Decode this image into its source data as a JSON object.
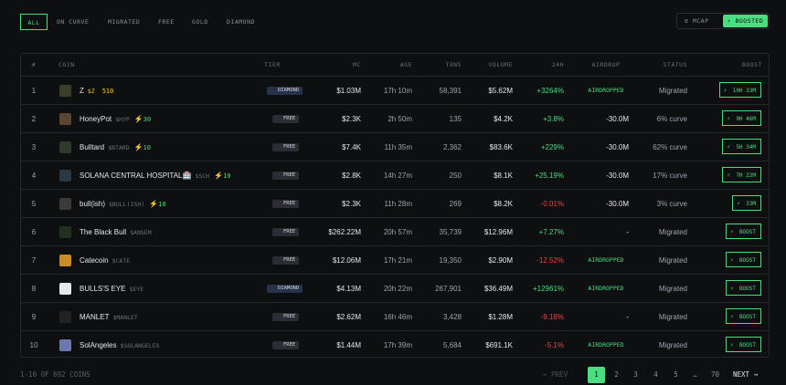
{
  "tabs": [
    "ALL",
    "ON CURVE",
    "MIGRATED",
    "FREE",
    "GOLD",
    "DIAMOND"
  ],
  "sort": [
    "MCAP",
    "BOOSTED"
  ],
  "table": {
    "headers": [
      "#",
      "COIN",
      "TIER",
      "MC",
      "AGE",
      "TXNS",
      "VOLUME",
      "24H",
      "AIRDROP",
      "STATUS",
      "BOOST"
    ],
    "rows": [
      {
        "rank": "1",
        "name": "Z",
        "ticker": "$Z",
        "points": "510",
        "tier": "DIAMOND",
        "mc": "$1.03M",
        "age": "17h 10m",
        "txns": "58,391",
        "volume": "$5.62M",
        "change": "+3264%",
        "airdrop": "AIRDROPPED",
        "status": "Migrated",
        "boost": "10H 33M"
      },
      {
        "rank": "2",
        "name": "HoneyPot",
        "ticker": "$HYP",
        "points": "30",
        "tier": "FREE",
        "mc": "$2.3K",
        "age": "2h 50m",
        "txns": "135",
        "volume": "$4.2K",
        "change": "+3.8%",
        "airdrop": "-30.0M",
        "status": "6% curve",
        "boost": "9H 46M"
      },
      {
        "rank": "3",
        "name": "Bulltard",
        "ticker": "$BTARD",
        "points": "10",
        "tier": "FREE",
        "mc": "$7.4K",
        "age": "11h 35m",
        "txns": "2,362",
        "volume": "$83.6K",
        "change": "+229%",
        "airdrop": "-30.0M",
        "status": "62% curve",
        "boost": "5H 34M"
      },
      {
        "rank": "4",
        "name": "SOLANA CENTRAL HOSPITAL🏥",
        "ticker": "$SCH",
        "points": "10",
        "tier": "FREE",
        "mc": "$2.8K",
        "age": "14h 27m",
        "txns": "250",
        "volume": "$8.1K",
        "change": "+25.19%",
        "airdrop": "-30.0M",
        "status": "17% curve",
        "boost": "7H 22M"
      },
      {
        "rank": "5",
        "name": "bull(ish)",
        "ticker": "$BULL(ISH)",
        "points": "10",
        "tier": "FREE",
        "mc": "$2.3K",
        "age": "11h 28m",
        "txns": "269",
        "volume": "$8.2K",
        "change": "-0.01%",
        "airdrop": "-30.0M",
        "status": "3% curve",
        "boost": "33M"
      },
      {
        "rank": "6",
        "name": "The Black Bull",
        "ticker": "$ANSEM",
        "tier": "FREE",
        "mc": "$262.22M",
        "age": "20h 57m",
        "txns": "35,739",
        "volume": "$12.96M",
        "change": "+7.27%",
        "airdrop": "-",
        "status": "Migrated",
        "boost": "BOOST"
      },
      {
        "rank": "7",
        "name": "Catecoin",
        "ticker": "$CATE",
        "tier": "FREE",
        "mc": "$12.06M",
        "age": "17h 21m",
        "txns": "19,350",
        "volume": "$2.90M",
        "change": "-12.52%",
        "airdrop": "AIRDROPPED",
        "status": "Migrated",
        "boost": "BOOST"
      },
      {
        "rank": "8",
        "name": "BULLS'S EYE",
        "ticker": "$EYE",
        "tier": "DIAMOND",
        "mc": "$4.13M",
        "age": "20h 22m",
        "txns": "267,901",
        "volume": "$36.49M",
        "change": "+12961%",
        "airdrop": "AIRDROPPED",
        "status": "Migrated",
        "boost": "BOOST"
      },
      {
        "rank": "9",
        "name": "MANLET",
        "ticker": "$MANLET",
        "tier": "FREE",
        "mc": "$2.62M",
        "age": "16h 46m",
        "txns": "3,428",
        "volume": "$1.28M",
        "change": "-9.18%",
        "airdrop": "-",
        "status": "Migrated",
        "boost": "BOOST"
      },
      {
        "rank": "10",
        "name": "SolAngeles",
        "ticker": "$SOLANGELES",
        "tier": "FREE",
        "mc": "$1.44M",
        "age": "17h 39m",
        "txns": "5,684",
        "volume": "$691.1K",
        "change": "-5.1%",
        "airdrop": "AIRDROPPED",
        "status": "Migrated",
        "boost": "BOOST"
      }
    ]
  },
  "footer": {
    "count": "1-10 OF 692 COINS",
    "prev": "← PREV",
    "pages": [
      "1",
      "2",
      "3",
      "4",
      "5",
      "…",
      "70"
    ],
    "next": "NEXT →"
  }
}
